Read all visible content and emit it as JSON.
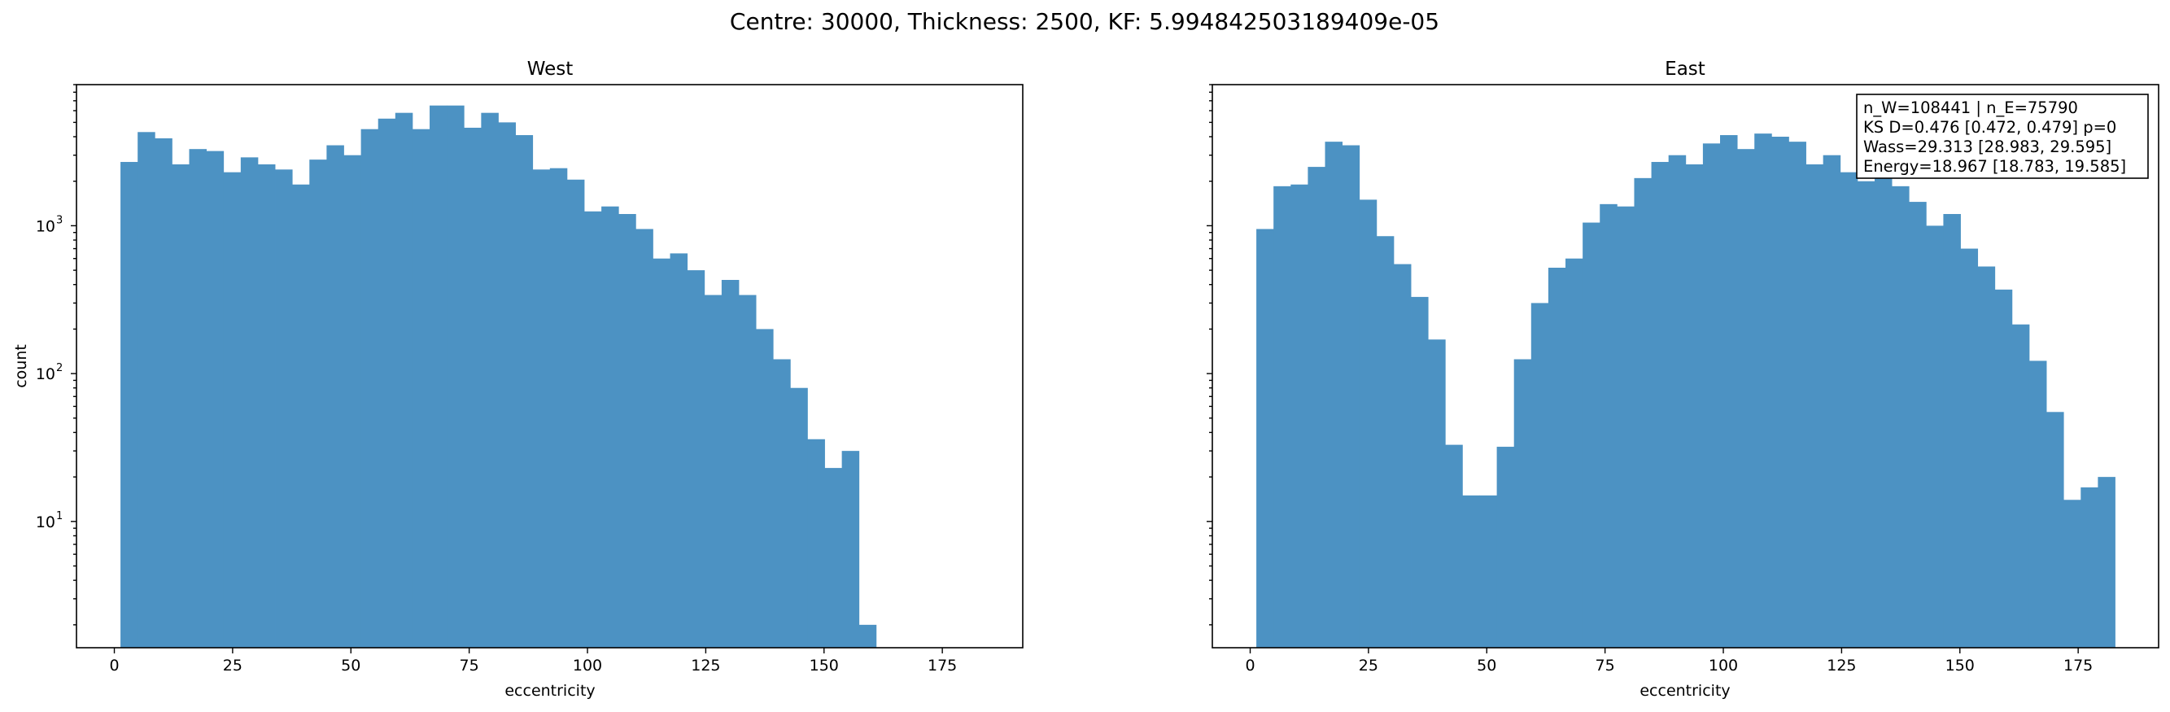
{
  "figure": {
    "suptitle": "Centre: 30000, Thickness: 2500, KF: 5.994842503189409e-05"
  },
  "colors": {
    "bar": "#4c92c3"
  },
  "chart_data": [
    {
      "type": "histogram",
      "title": "West",
      "xlabel": "eccentricity",
      "ylabel": "count",
      "yscale": "log",
      "xlim": [
        -8,
        192
      ],
      "ylim": [
        1.4,
        9000
      ],
      "xticks": [
        0,
        25,
        50,
        75,
        100,
        125,
        150,
        175
      ],
      "yticks": [
        {
          "value": 10,
          "label": "10"
        },
        {
          "value": 100,
          "label": "10"
        },
        {
          "value": 1000,
          "label": "10"
        }
      ],
      "yticks_exp": [
        "1",
        "2",
        "3"
      ],
      "bin_start": 1.3,
      "bin_width": 3.63,
      "values": [
        2700,
        4300,
        3900,
        2600,
        3300,
        3200,
        2300,
        2900,
        2600,
        2400,
        1900,
        2800,
        3500,
        3000,
        4500,
        5300,
        5800,
        4500,
        6500,
        6500,
        4600,
        5800,
        5000,
        4100,
        2400,
        2450,
        2050,
        1250,
        1350,
        1200,
        950,
        600,
        650,
        500,
        340,
        430,
        340,
        200,
        125,
        80,
        36,
        23,
        30,
        2
      ]
    },
    {
      "type": "histogram",
      "title": "East",
      "xlabel": "eccentricity",
      "ylabel": "",
      "yscale": "log",
      "xlim": [
        -8,
        192
      ],
      "ylim": [
        1.4,
        9000
      ],
      "xticks": [
        0,
        25,
        50,
        75,
        100,
        125,
        150,
        175
      ],
      "bin_start": 1.3,
      "bin_width": 3.63,
      "values": [
        950,
        1850,
        1900,
        2500,
        3700,
        3500,
        1500,
        850,
        550,
        330,
        170,
        33,
        15,
        15,
        32,
        125,
        300,
        520,
        600,
        1050,
        1400,
        1350,
        2100,
        2700,
        3000,
        2600,
        3600,
        4100,
        3300,
        4200,
        4000,
        3700,
        2600,
        3000,
        2300,
        2000,
        2200,
        1850,
        1450,
        1000,
        1200,
        700,
        530,
        370,
        215,
        122,
        55,
        14,
        17,
        20
      ],
      "stats_box": [
        "n_W=108441 | n_E=75790",
        "KS D=0.476 [0.472, 0.479]  p=0",
        "Wass=29.313 [28.983, 29.595]",
        "Energy=18.967 [18.783, 19.585]"
      ]
    }
  ]
}
